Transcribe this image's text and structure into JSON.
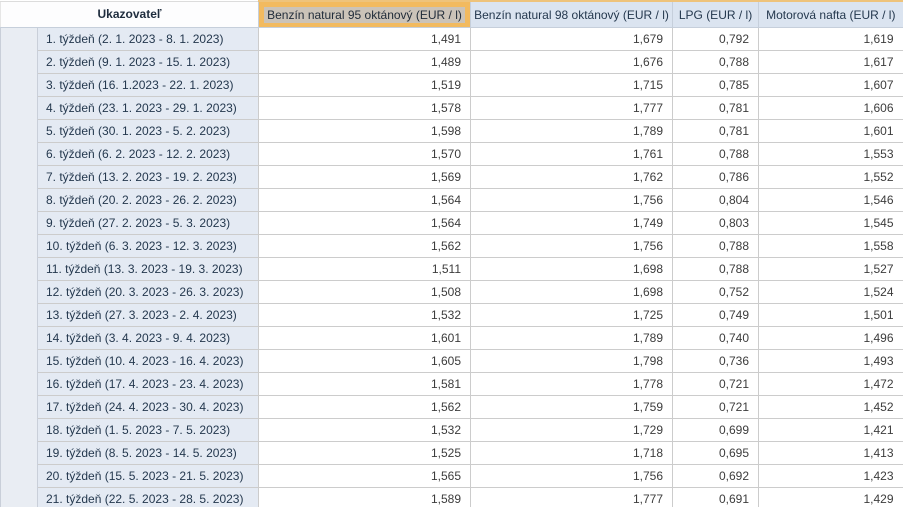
{
  "table": {
    "corner_header": "Ukazovateľ",
    "columns": [
      {
        "label": "Benzín natural 95 oktánový (EUR / l)",
        "highlighted": true
      },
      {
        "label": "Benzín natural 98 oktánový (EUR / l)",
        "highlighted": false
      },
      {
        "label": "LPG (EUR / l)",
        "highlighted": false
      },
      {
        "label": "Motorová nafta (EUR / l)",
        "highlighted": false
      }
    ],
    "rows": [
      {
        "label": "1. týždeň (2. 1. 2023 - 8. 1. 2023)",
        "values": [
          "1,491",
          "1,679",
          "0,792",
          "1,619"
        ]
      },
      {
        "label": "2. týždeň (9. 1. 2023 - 15. 1. 2023)",
        "values": [
          "1,489",
          "1,676",
          "0,788",
          "1,617"
        ]
      },
      {
        "label": "3. týždeň (16. 1.2023 - 22. 1. 2023)",
        "values": [
          "1,519",
          "1,715",
          "0,785",
          "1,607"
        ]
      },
      {
        "label": "4. týždeň (23. 1. 2023 - 29. 1. 2023)",
        "values": [
          "1,578",
          "1,777",
          "0,781",
          "1,606"
        ]
      },
      {
        "label": "5. týždeň (30. 1. 2023 - 5. 2. 2023)",
        "values": [
          "1,598",
          "1,789",
          "0,781",
          "1,601"
        ]
      },
      {
        "label": "6. týždeň (6. 2. 2023 - 12. 2. 2023)",
        "values": [
          "1,570",
          "1,761",
          "0,788",
          "1,553"
        ]
      },
      {
        "label": "7. týždeň (13. 2. 2023 - 19. 2. 2023)",
        "values": [
          "1,569",
          "1,762",
          "0,786",
          "1,552"
        ]
      },
      {
        "label": "8. týždeň (20. 2. 2023 - 26. 2. 2023)",
        "values": [
          "1,564",
          "1,756",
          "0,804",
          "1,546"
        ]
      },
      {
        "label": "9. týždeň (27. 2. 2023 - 5. 3. 2023)",
        "values": [
          "1,564",
          "1,749",
          "0,803",
          "1,545"
        ]
      },
      {
        "label": "10. týždeň (6. 3. 2023 - 12. 3. 2023)",
        "values": [
          "1,562",
          "1,756",
          "0,788",
          "1,558"
        ]
      },
      {
        "label": "11. týždeň (13. 3. 2023 - 19. 3. 2023)",
        "values": [
          "1,511",
          "1,698",
          "0,788",
          "1,527"
        ]
      },
      {
        "label": "12. týždeň (20. 3. 2023 - 26. 3. 2023)",
        "values": [
          "1,508",
          "1,698",
          "0,752",
          "1,524"
        ]
      },
      {
        "label": "13. týždeň (27. 3. 2023 - 2. 4. 2023)",
        "values": [
          "1,532",
          "1,725",
          "0,749",
          "1,501"
        ]
      },
      {
        "label": "14. týždeň (3. 4. 2023 - 9. 4. 2023)",
        "values": [
          "1,601",
          "1,789",
          "0,740",
          "1,496"
        ]
      },
      {
        "label": "15. týždeň (10. 4. 2023 - 16. 4. 2023)",
        "values": [
          "1,605",
          "1,798",
          "0,736",
          "1,493"
        ]
      },
      {
        "label": "16. týždeň (17. 4. 2023 - 23. 4. 2023)",
        "values": [
          "1,581",
          "1,778",
          "0,721",
          "1,472"
        ]
      },
      {
        "label": "17. týždeň (24. 4. 2023 - 30. 4. 2023)",
        "values": [
          "1,562",
          "1,759",
          "0,721",
          "1,452"
        ]
      },
      {
        "label": "18. týždeň (1. 5. 2023 - 7. 5. 2023)",
        "values": [
          "1,532",
          "1,729",
          "0,699",
          "1,421"
        ]
      },
      {
        "label": "19. týždeň (8. 5. 2023 - 14. 5. 2023)",
        "values": [
          "1,525",
          "1,718",
          "0,695",
          "1,413"
        ]
      },
      {
        "label": "20. týždeň (15. 5. 2023 - 21. 5. 2023)",
        "values": [
          "1,565",
          "1,756",
          "0,692",
          "1,423"
        ]
      },
      {
        "label": "21. týždeň (22. 5. 2023 - 28. 5. 2023)",
        "values": [
          "1,589",
          "1,777",
          "0,691",
          "1,429"
        ]
      }
    ]
  },
  "colors": {
    "highlight_orange": "#f2ba5f",
    "selection_tan": "#cbc3b8",
    "header_blue": "#dbe4f0",
    "label_blue": "#e4eaf3",
    "strip_blue": "#e9edf3",
    "top_accent": "#eec37b",
    "right_accent": "#dcd0a2",
    "text_navy": "#24384e"
  }
}
